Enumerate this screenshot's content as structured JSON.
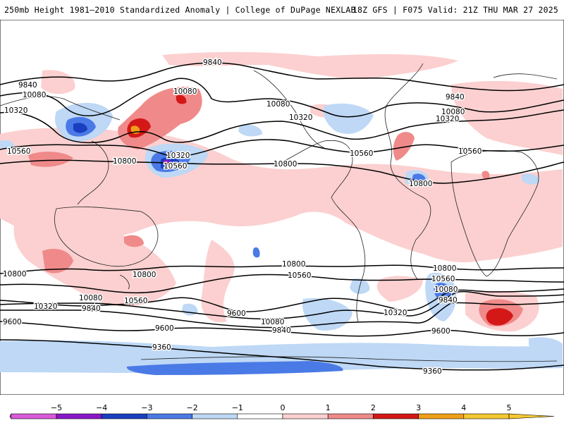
{
  "header": {
    "title": "250mb Height 1981–2010 Standardized Anomaly | College of DuPage NEXLAB",
    "run_info": "18Z GFS | F075 Valid: 21Z THU MAR 27 2025"
  },
  "map": {
    "contour_labels": [
      "9840",
      "10080",
      "10320",
      "10560",
      "10800",
      "10080",
      "10320",
      "10560",
      "10800",
      "9840",
      "10080",
      "10320",
      "10560",
      "10800",
      "10800",
      "10560",
      "10320",
      "10080",
      "9840",
      "9600",
      "10800",
      "10560",
      "10320",
      "10080",
      "9840",
      "9600",
      "10800",
      "10560",
      "10080",
      "9840",
      "9600",
      "9360",
      "9360",
      "10800",
      "10560",
      "10320",
      "10080",
      "9840",
      "9600"
    ]
  },
  "colorbar": {
    "tick_labels": [
      "−5",
      "−4",
      "−3",
      "−2",
      "−1",
      "0",
      "1",
      "2",
      "3",
      "4",
      "5"
    ],
    "colors": [
      "#d85ad8",
      "#8a18c8",
      "#1a3ec0",
      "#4a7ae6",
      "#bed8f6",
      "#ffffff",
      "#fcd0d0",
      "#f08a8a",
      "#d41818",
      "#f0a018",
      "#f4c830"
    ]
  }
}
